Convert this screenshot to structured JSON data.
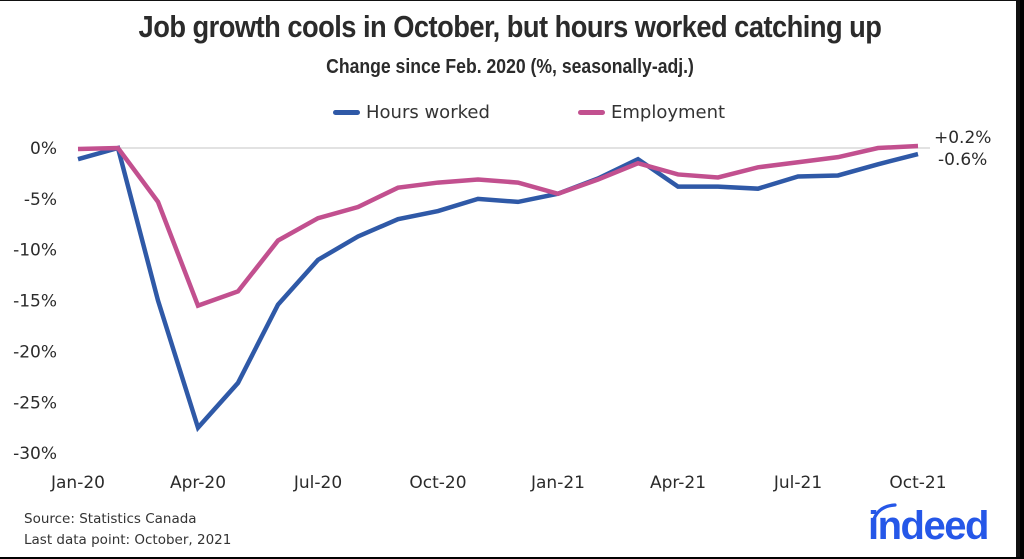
{
  "header": {
    "title": "Job growth cools in October, but hours worked catching up",
    "subtitle": "Change since Feb. 2020 (%, seasonally-adj.)"
  },
  "legend": [
    {
      "label": "Hours worked",
      "color": "#2f59a7"
    },
    {
      "label": "Employment",
      "color": "#c2508f"
    }
  ],
  "end_labels": {
    "employment": "+0.2%",
    "hours": "-0.6%"
  },
  "footer": {
    "source": "Source: Statistics Canada",
    "last_point": "Last data point: October, 2021"
  },
  "logo": {
    "text": "indeed",
    "color": "#2557e8"
  },
  "chart_data": {
    "type": "line",
    "title": "Job growth cools in October, but hours worked catching up",
    "subtitle": "Change since Feb. 2020 (%, seasonally-adj.)",
    "xlabel": "",
    "ylabel": "",
    "x": [
      "Jan-20",
      "Feb-20",
      "Mar-20",
      "Apr-20",
      "May-20",
      "Jun-20",
      "Jul-20",
      "Aug-20",
      "Sep-20",
      "Oct-20",
      "Nov-20",
      "Dec-20",
      "Jan-21",
      "Feb-21",
      "Mar-21",
      "Apr-21",
      "May-21",
      "Jun-21",
      "Jul-21",
      "Aug-21",
      "Sep-21",
      "Oct-21"
    ],
    "x_tick_labels": [
      "Jan-20",
      "Apr-20",
      "Jul-20",
      "Oct-20",
      "Jan-21",
      "Apr-21",
      "Jul-21",
      "Oct-21"
    ],
    "y_tick_labels": [
      "0%",
      "-5%",
      "-10%",
      "-15%",
      "-20%",
      "-25%",
      "-30%"
    ],
    "ylim": [
      -30,
      0
    ],
    "grid": "zero line only",
    "legend_position": "top",
    "series": [
      {
        "name": "Hours worked",
        "color": "#2f59a7",
        "values": [
          -1.1,
          0.0,
          -15.0,
          -27.5,
          -23.1,
          -15.4,
          -11.0,
          -8.7,
          -7.0,
          -6.2,
          -5.0,
          -5.3,
          -4.5,
          -3.0,
          -1.1,
          -3.8,
          -3.8,
          -4.0,
          -2.8,
          -2.7,
          -1.6,
          -0.6
        ]
      },
      {
        "name": "Employment",
        "color": "#c2508f",
        "values": [
          -0.1,
          0.0,
          -5.3,
          -15.5,
          -14.1,
          -9.1,
          -6.9,
          -5.8,
          -3.9,
          -3.4,
          -3.1,
          -3.4,
          -4.5,
          -3.1,
          -1.5,
          -2.6,
          -2.9,
          -1.9,
          -1.4,
          -0.9,
          0.0,
          0.2
        ]
      }
    ],
    "annotations": [
      {
        "text": "+0.2%",
        "series": "Employment",
        "x": "Oct-21"
      },
      {
        "text": "-0.6%",
        "series": "Hours worked",
        "x": "Oct-21"
      }
    ]
  }
}
